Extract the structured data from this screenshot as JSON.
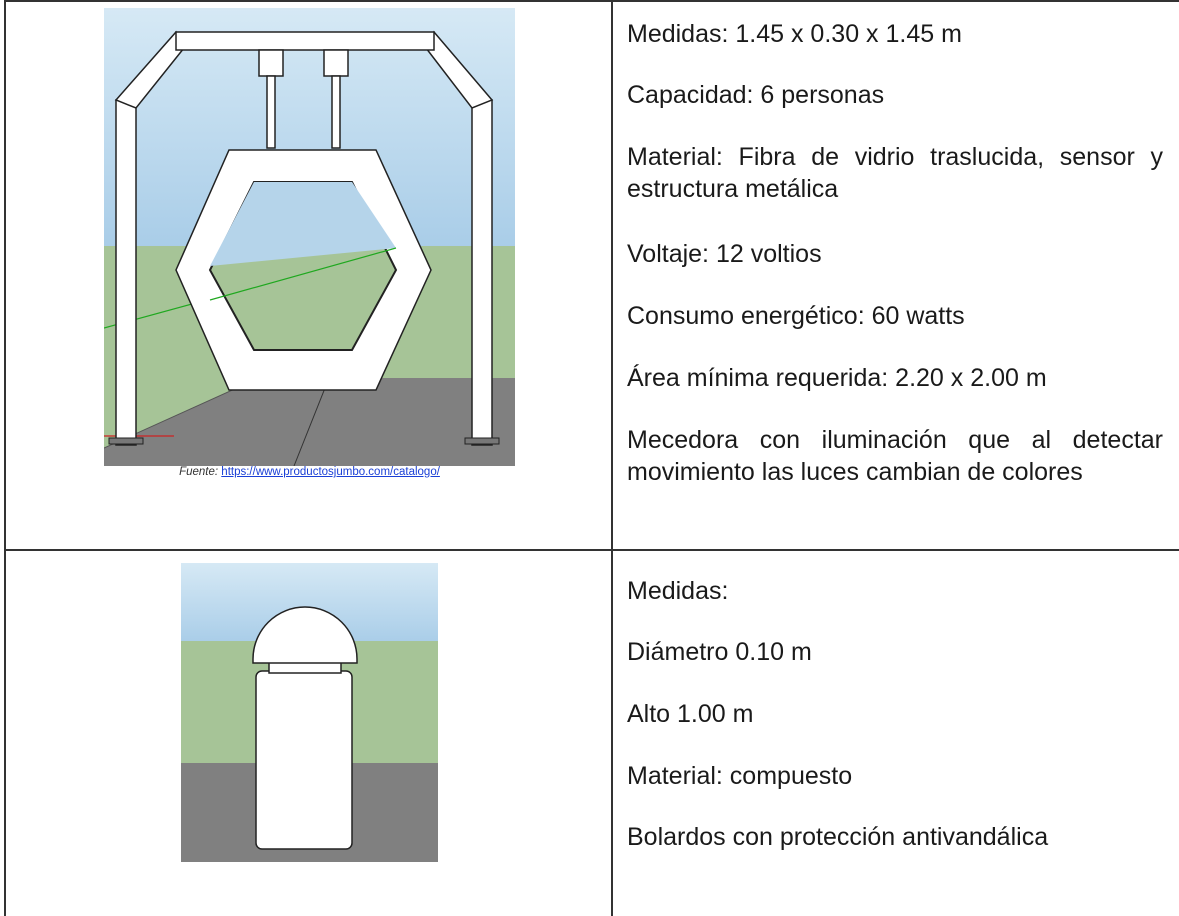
{
  "table": {
    "rows": [
      {
        "caption": {
          "label": "Fuente:",
          "link": "https://www.productosjumbo.com/catalogo/"
        },
        "lines": [
          "Medidas: 1.45 x 0.30 x 1.45 m",
          "Capacidad: 6 personas",
          "Material: Fibra de vidrio traslucida, sensor y estructura metálica",
          "Voltaje: 12 voltios",
          "Consumo energético: 60 watts",
          "Área mínima requerida: 2.20 x 2.00 m",
          "Mecedora con iluminación que al detectar movimiento las luces cambian de colores"
        ]
      },
      {
        "lines": [
          "Medidas:",
          "Diámetro 0.10 m",
          "Alto 1.00 m",
          "Material: compuesto",
          "Bolardos con protección antivandálica"
        ]
      }
    ]
  }
}
